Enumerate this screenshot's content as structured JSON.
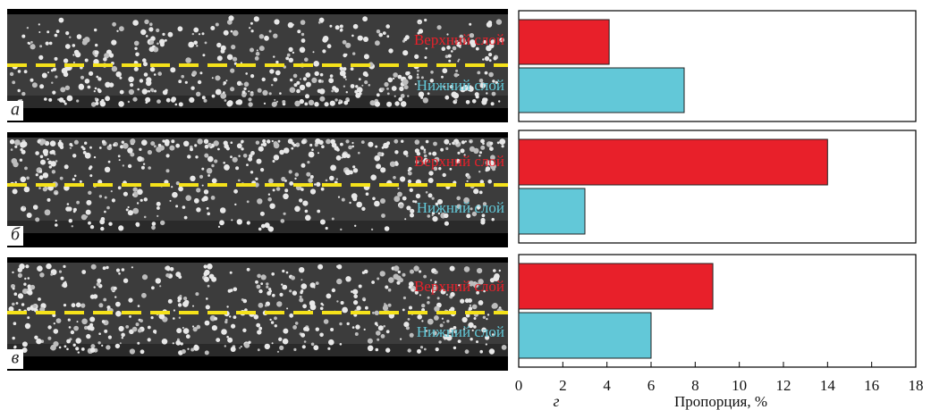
{
  "images": [
    {
      "label": "а"
    },
    {
      "label": "б"
    },
    {
      "label": "в"
    }
  ],
  "chart_label": "г",
  "chart_data": [
    {
      "type": "bar",
      "categories": [
        "Верхний слой",
        "Нижний слой"
      ],
      "values": [
        4.1,
        7.5
      ],
      "colors": [
        "#e8202a",
        "#62c8d8"
      ],
      "xlim": [
        0,
        18
      ]
    },
    {
      "type": "bar",
      "categories": [
        "Верхний слой",
        "Нижний слой"
      ],
      "values": [
        14,
        3
      ],
      "colors": [
        "#e8202a",
        "#62c8d8"
      ],
      "xlim": [
        0,
        18
      ]
    },
    {
      "type": "bar",
      "categories": [
        "Верхний слой",
        "Нижний слой"
      ],
      "values": [
        8.8,
        6
      ],
      "colors": [
        "#e8202a",
        "#62c8d8"
      ],
      "xlim": [
        0,
        18
      ],
      "xticks": [
        0,
        2,
        4,
        6,
        8,
        10,
        12,
        14,
        16,
        18
      ],
      "xlabel": "Пропорция, %"
    }
  ]
}
